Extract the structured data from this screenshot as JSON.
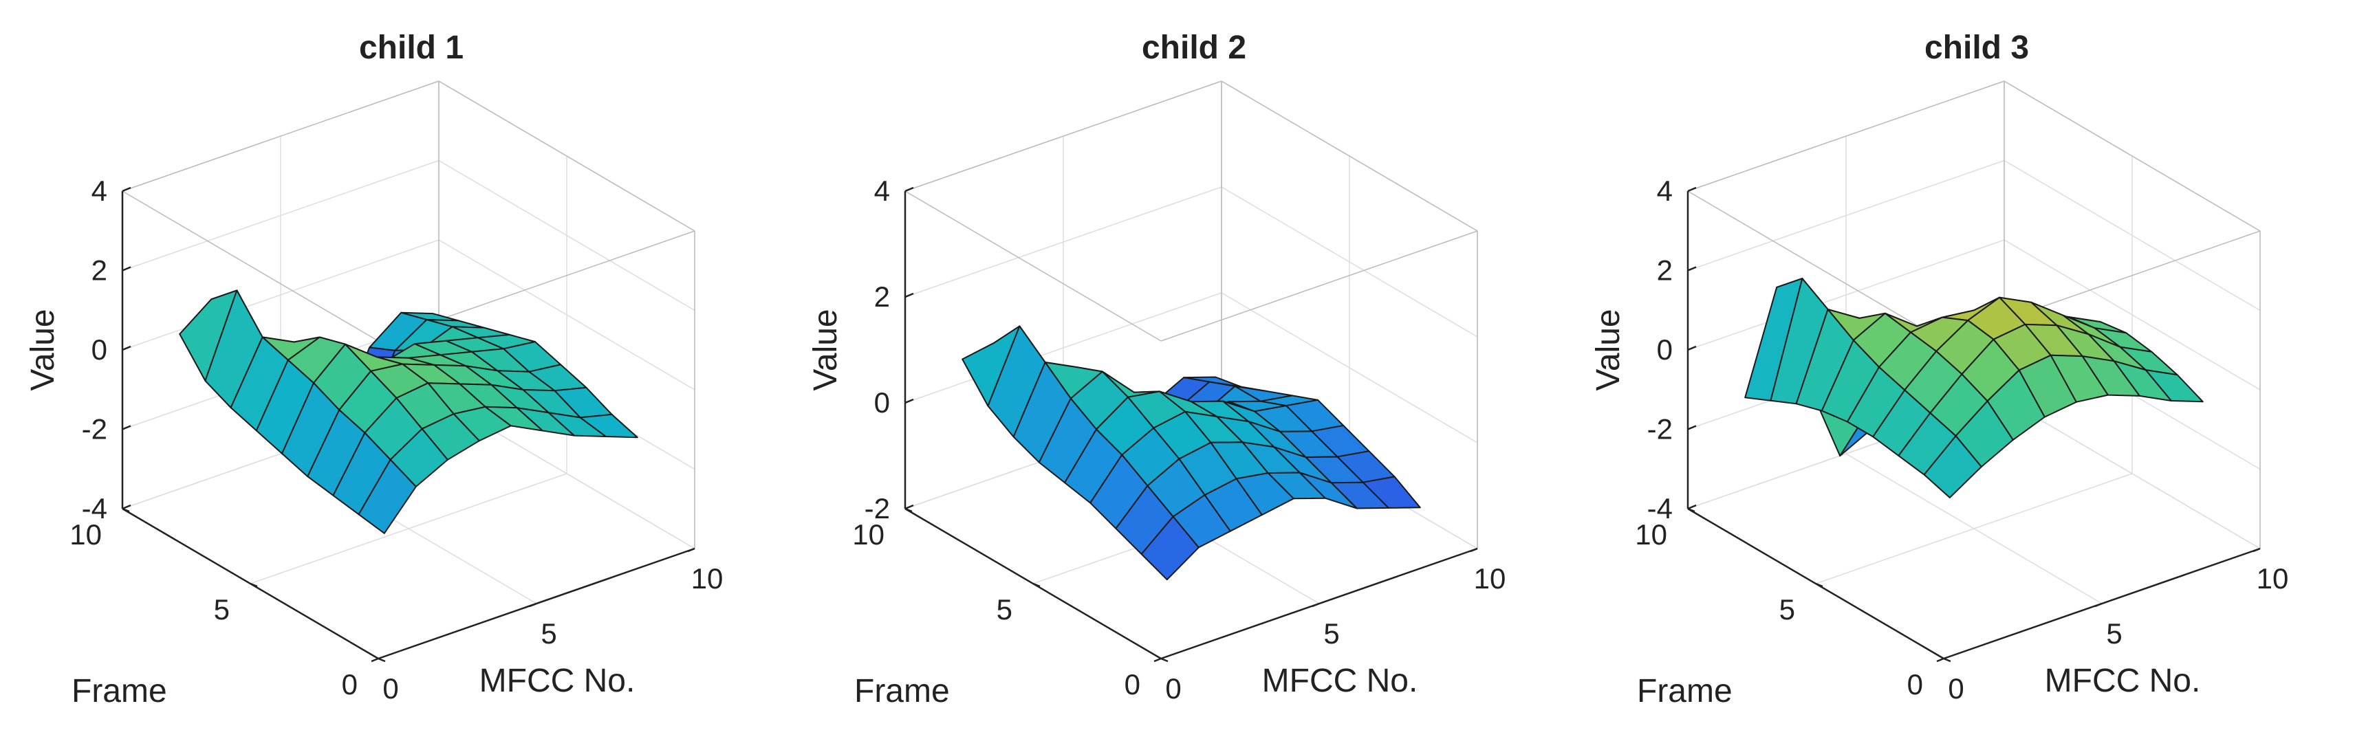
{
  "figure": {
    "colormap": [
      "#3e26a8",
      "#2f56e6",
      "#1d8de0",
      "#10b1c9",
      "#2bc49f",
      "#6ccb6a",
      "#bcc13c",
      "#f5b92f",
      "#f9f816"
    ]
  },
  "chart_data": [
    {
      "type": "surface",
      "title": "child 1",
      "xlabel": "MFCC No.",
      "ylabel": "Frame",
      "zlabel": "Value",
      "xlim": [
        0,
        10
      ],
      "ylim": [
        0,
        10
      ],
      "zlim": [
        -4,
        4
      ],
      "xticks": [
        "0",
        "5",
        "10"
      ],
      "yticks": [
        "0",
        "5",
        "10"
      ],
      "zticks": [
        "-4",
        "-2",
        "0",
        "2",
        "4"
      ],
      "grid": true,
      "x": [
        1,
        2,
        3,
        4,
        5,
        6,
        7,
        8,
        9
      ],
      "y": [
        1,
        2,
        3,
        4,
        5,
        6,
        7,
        8,
        9
      ],
      "z": [
        [
          -1.5,
          -0.6,
          -0.2,
          0.0,
          0.1,
          -0.3,
          -0.7,
          -1.0,
          -1.3
        ],
        [
          -1.4,
          -0.3,
          0.2,
          0.3,
          0.2,
          -0.1,
          -0.5,
          -0.9,
          -1.1
        ],
        [
          -1.3,
          0.0,
          0.6,
          0.7,
          0.4,
          0.1,
          -0.3,
          -0.6,
          -0.8
        ],
        [
          -1.2,
          0.2,
          0.9,
          0.8,
          0.5,
          0.2,
          -0.2,
          -0.5,
          -0.6
        ],
        [
          -1.0,
          0.5,
          1.2,
          0.6,
          0.3,
          0.1,
          -0.1,
          -0.3,
          -0.4
        ],
        [
          -0.8,
          0.7,
          1.0,
          0.3,
          -0.2,
          0.0,
          -0.2,
          -0.4,
          -0.6
        ],
        [
          -0.6,
          0.9,
          0.5,
          -0.5,
          -1.5,
          -2.2,
          -0.8,
          -0.5,
          -0.8
        ],
        [
          -0.3,
          1.7,
          -0.3,
          -2.0,
          -3.0,
          -2.8,
          -1.2,
          -0.7,
          -1.0
        ],
        [
          0.5,
          1.1,
          -1.6,
          -2.6,
          -3.6,
          -3.2,
          -1.5,
          -0.9,
          -1.2
        ]
      ]
    },
    {
      "type": "surface",
      "title": "child 2",
      "xlabel": "MFCC No.",
      "ylabel": "Frame",
      "zlabel": "Value",
      "xlim": [
        0,
        10
      ],
      "ylim": [
        0,
        10
      ],
      "zlim": [
        -2,
        4
      ],
      "xticks": [
        "0",
        "5",
        "10"
      ],
      "yticks": [
        "0",
        "5",
        "10"
      ],
      "zticks": [
        "-2",
        "0",
        "2",
        "4"
      ],
      "grid": true,
      "x": [
        1,
        2,
        3,
        4,
        5,
        6,
        7,
        8,
        9
      ],
      "y": [
        1,
        2,
        3,
        4,
        5,
        6,
        7,
        8,
        9
      ],
      "z": [
        [
          -1.0,
          -0.6,
          -0.5,
          -0.4,
          -0.3,
          -0.5,
          -0.9,
          -1.1,
          -1.3
        ],
        [
          -0.8,
          -0.3,
          -0.1,
          0.0,
          -0.1,
          -0.3,
          -0.7,
          -0.9,
          -1.0
        ],
        [
          -0.6,
          0.0,
          0.3,
          0.4,
          0.2,
          -0.1,
          -0.5,
          -0.7,
          -0.8
        ],
        [
          -0.4,
          0.3,
          0.6,
          0.7,
          0.4,
          0.1,
          -0.3,
          -0.5,
          -0.6
        ],
        [
          -0.3,
          0.5,
          0.9,
          0.8,
          0.4,
          0.2,
          -0.2,
          -0.3,
          -0.4
        ],
        [
          -0.2,
          0.8,
          1.1,
          0.5,
          0.1,
          -0.2,
          -0.3,
          -0.5,
          -0.6
        ],
        [
          0.0,
          1.2,
          0.9,
          0.0,
          -0.8,
          -1.3,
          -0.8,
          -0.5,
          -0.8
        ],
        [
          0.3,
          1.6,
          0.2,
          -1.0,
          -1.7,
          -1.8,
          -1.0,
          -0.7,
          -1.0
        ],
        [
          0.9,
          1.0,
          -0.8,
          -1.5,
          -2.0,
          -1.6,
          -1.2,
          -0.9,
          -1.1
        ]
      ]
    },
    {
      "type": "surface",
      "title": "child 3",
      "xlabel": "MFCC No.",
      "ylabel": "Frame",
      "zlabel": "Value",
      "xlim": [
        0,
        10
      ],
      "ylim": [
        0,
        10
      ],
      "zlim": [
        -4,
        4
      ],
      "xticks": [
        "0",
        "5",
        "10"
      ],
      "yticks": [
        "0",
        "5",
        "10"
      ],
      "zticks": [
        "-4",
        "-2",
        "0",
        "2",
        "4"
      ],
      "grid": true,
      "x": [
        1,
        2,
        3,
        4,
        5,
        6,
        7,
        8,
        9
      ],
      "y": [
        1,
        2,
        3,
        4,
        5,
        6,
        7,
        8,
        9
      ],
      "z": [
        [
          -0.6,
          -0.1,
          0.3,
          0.6,
          0.7,
          0.6,
          0.3,
          -0.1,
          -0.4
        ],
        [
          -0.4,
          0.3,
          0.9,
          1.4,
          1.5,
          1.2,
          0.8,
          0.3,
          -0.1
        ],
        [
          -0.3,
          0.5,
          1.2,
          1.8,
          1.9,
          1.6,
          1.1,
          0.5,
          0.1
        ],
        [
          -0.2,
          0.7,
          1.4,
          1.9,
          2.2,
          1.8,
          1.2,
          0.6,
          0.2
        ],
        [
          -0.2,
          0.9,
          1.5,
          1.6,
          1.5,
          1.3,
          0.9,
          0.5,
          0.1
        ],
        [
          -0.3,
          1.2,
          1.6,
          1.0,
          0.6,
          0.4,
          0.2,
          -0.2,
          -0.5
        ],
        [
          -0.5,
          1.6,
          1.1,
          -0.2,
          -1.0,
          -0.8,
          -0.6,
          -0.8,
          -1.0
        ],
        [
          -0.8,
          2.0,
          0.2,
          -2.0,
          -2.6,
          -2.3,
          -1.4,
          -1.2,
          -1.4
        ],
        [
          -1.1,
          1.4,
          -1.3,
          -3.4,
          -3.0,
          -2.8,
          -1.9,
          -1.5,
          -1.7
        ]
      ]
    }
  ]
}
